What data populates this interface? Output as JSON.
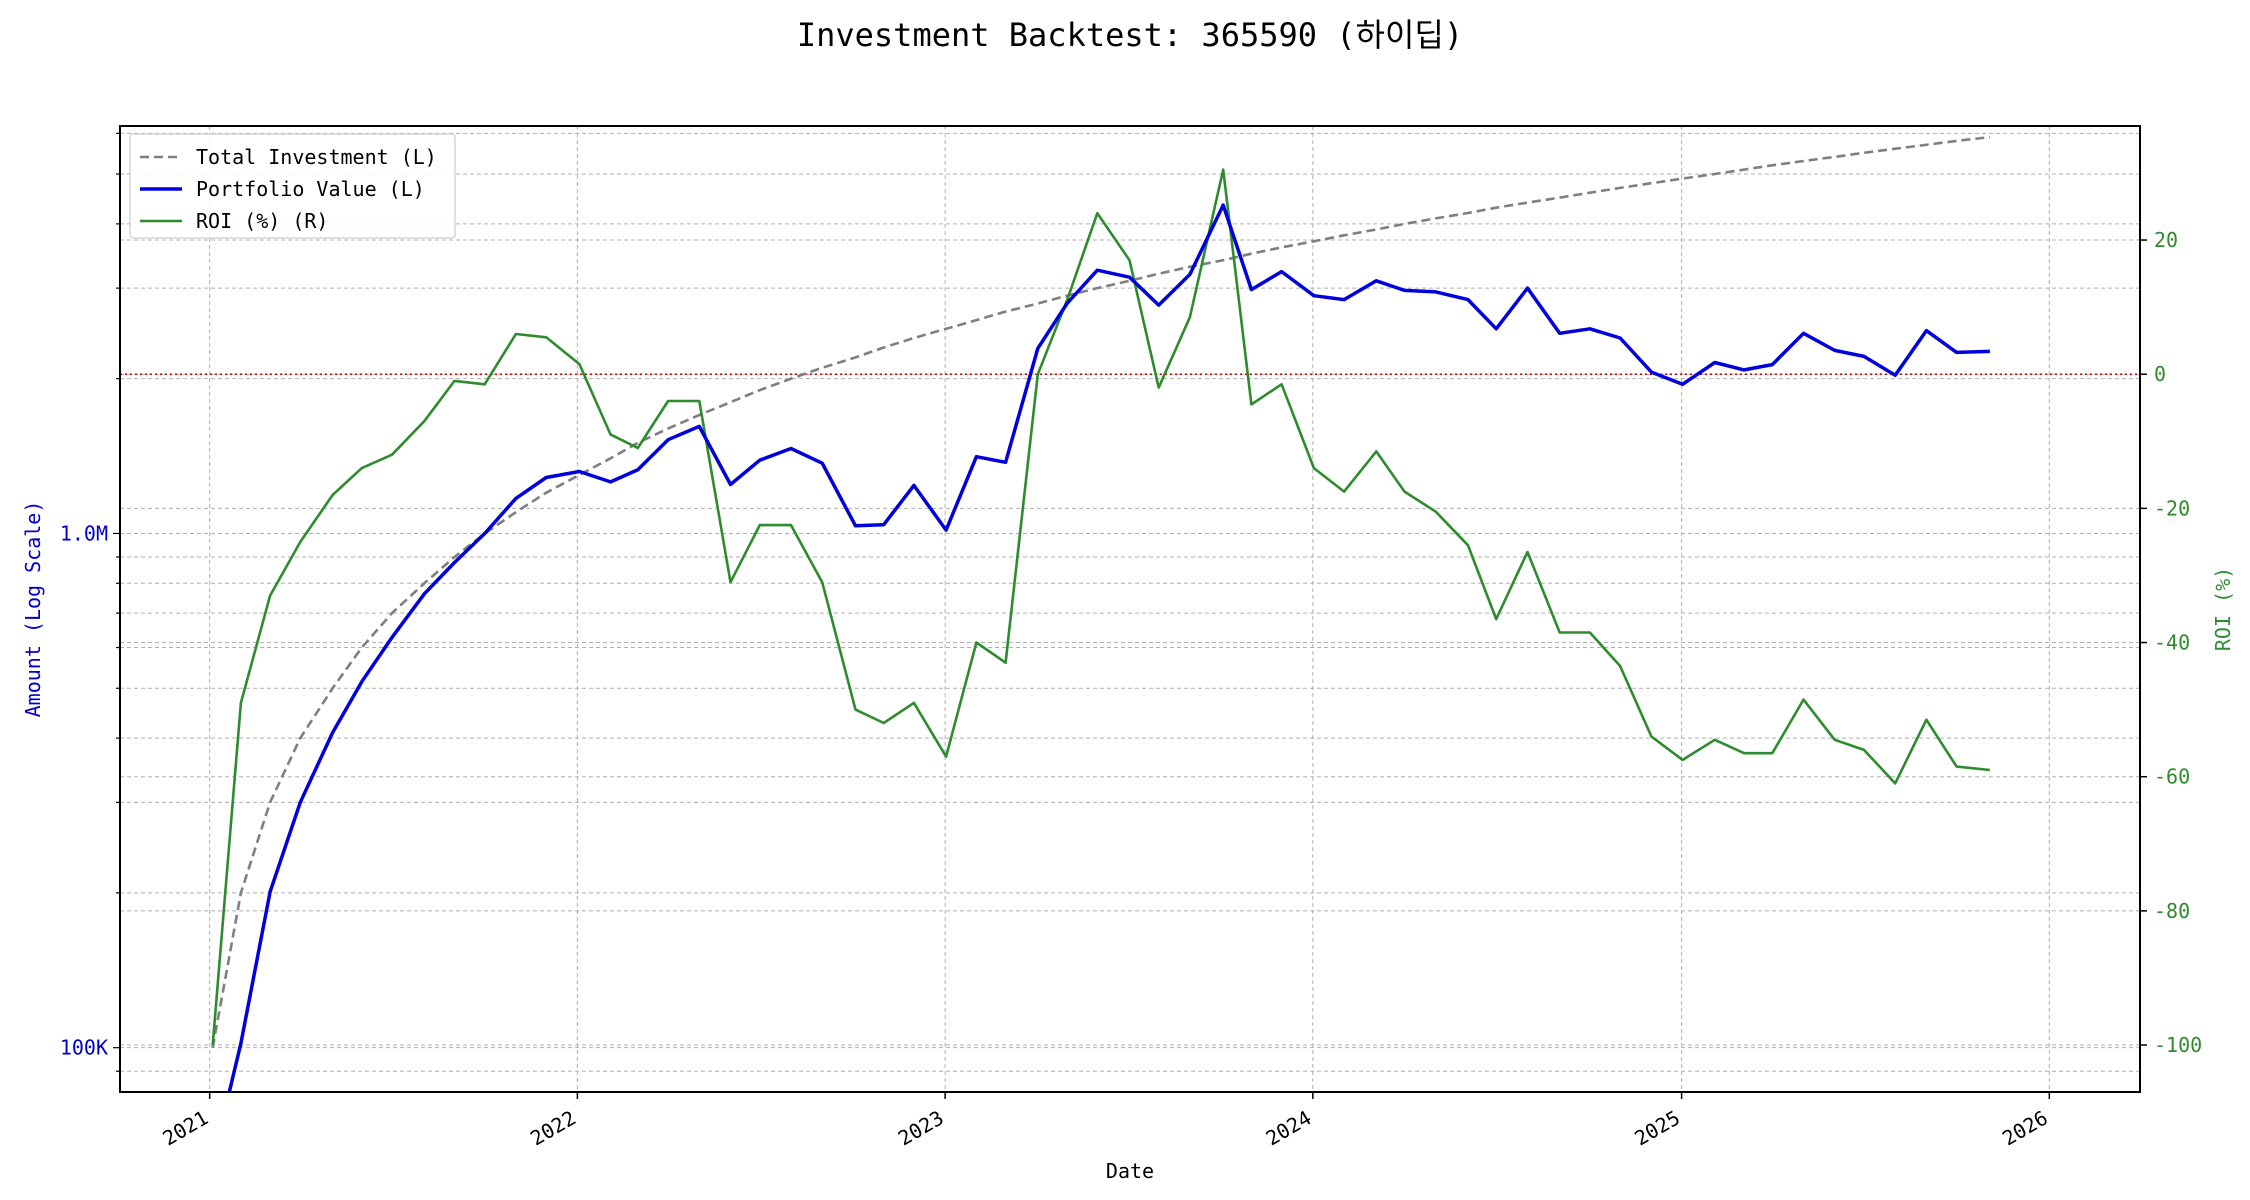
{
  "chart_data": {
    "type": "line",
    "title": "Investment Backtest: 365590 (하이딥)",
    "xlabel": "Date",
    "ylabel_left": "Amount (Log Scale)",
    "ylabel_right": "ROI (%)",
    "x_ticks": [
      "2021",
      "2022",
      "2023",
      "2024",
      "2025",
      "2026"
    ],
    "y_left_scale": "log",
    "y_left_ticks": [
      {
        "value": 100000,
        "label": "100K"
      },
      {
        "value": 1000000,
        "label": "1.0M"
      }
    ],
    "y_left_range": [
      82000,
      6200000
    ],
    "y_right_ticks": [
      -100,
      -80,
      -60,
      -40,
      -20,
      0,
      20
    ],
    "y_right_range": [
      -107,
      37
    ],
    "x_range": [
      "2020-10-04",
      "2026-04-01"
    ],
    "grid": true,
    "legend_position": "top-left",
    "zero_line_color": "#cc0000",
    "x": [
      "2021-01-04",
      "2021-02-01",
      "2021-03-02",
      "2021-04-01",
      "2021-05-03",
      "2021-06-01",
      "2021-07-01",
      "2021-08-02",
      "2021-09-01",
      "2021-10-01",
      "2021-11-01",
      "2021-12-01",
      "2022-01-03",
      "2022-02-03",
      "2022-03-02",
      "2022-04-01",
      "2022-05-02",
      "2022-06-02",
      "2022-07-01",
      "2022-08-01",
      "2022-09-01",
      "2022-10-04",
      "2022-11-01",
      "2022-12-01",
      "2023-01-02",
      "2023-02-01",
      "2023-03-02",
      "2023-04-03",
      "2023-05-02",
      "2023-06-01",
      "2023-07-03",
      "2023-08-01",
      "2023-09-01",
      "2023-10-04",
      "2023-11-01",
      "2023-12-01",
      "2024-01-02",
      "2024-02-01",
      "2024-03-04",
      "2024-04-01",
      "2024-05-02",
      "2024-06-03",
      "2024-07-01",
      "2024-08-01",
      "2024-09-02",
      "2024-10-02",
      "2024-11-01",
      "2024-12-02",
      "2025-01-02",
      "2025-02-03",
      "2025-03-04",
      "2025-04-01",
      "2025-05-02",
      "2025-06-02",
      "2025-07-01",
      "2025-08-01",
      "2025-09-01",
      "2025-10-01",
      "2025-11-03"
    ],
    "series": [
      {
        "name": "Total Investment (L)",
        "axis": "left",
        "color": "#7f7f7f",
        "style": "dashed",
        "values": [
          100000,
          200000,
          300000,
          400000,
          500000,
          600000,
          700000,
          800000,
          900000,
          1000000,
          1100000,
          1200000,
          1300000,
          1400000,
          1500000,
          1600000,
          1700000,
          1800000,
          1900000,
          2000000,
          2100000,
          2200000,
          2300000,
          2400000,
          2500000,
          2600000,
          2700000,
          2800000,
          2900000,
          3000000,
          3100000,
          3200000,
          3300000,
          3400000,
          3500000,
          3600000,
          3700000,
          3800000,
          3900000,
          4000000,
          4100000,
          4200000,
          4300000,
          4400000,
          4500000,
          4600000,
          4700000,
          4800000,
          4900000,
          5000000,
          5100000,
          5200000,
          5300000,
          5400000,
          5500000,
          5600000,
          5700000,
          5800000,
          5900000
        ]
      },
      {
        "name": "Portfolio Value (L)",
        "axis": "left",
        "color": "#0000dd",
        "style": "solid",
        "values": [
          60000,
          102000,
          201000,
          300000,
          410000,
          515000,
          628000,
          763000,
          878000,
          1000000,
          1170000,
          1285000,
          1320000,
          1260000,
          1330000,
          1522000,
          1615000,
          1245000,
          1388000,
          1463000,
          1370000,
          1035000,
          1040000,
          1240000,
          1015000,
          1410000,
          1375000,
          2290000,
          2800000,
          3250000,
          3150000,
          2780000,
          3190000,
          4350000,
          2980000,
          3230000,
          2900000,
          2850000,
          3100000,
          2970000,
          2950000,
          2850000,
          2500000,
          3000000,
          2450000,
          2500000,
          2400000,
          2060000,
          1950000,
          2150000,
          2080000,
          2130000,
          2450000,
          2270000,
          2210000,
          2030000,
          2480000,
          2250000,
          2260000
        ]
      },
      {
        "name": "ROI (%) (R)",
        "axis": "right",
        "color": "#2e8b2e",
        "style": "solid",
        "values": [
          -100,
          -49,
          -33,
          -25,
          -18,
          -14,
          -12,
          -7,
          -1,
          -1.5,
          6,
          5.5,
          1.5,
          -9,
          -11,
          -4,
          -4,
          -31,
          -22.5,
          -22.5,
          -31,
          -50,
          -52,
          -49,
          -57,
          -40,
          -43,
          0,
          11,
          24,
          17,
          -2,
          8.5,
          30.5,
          -4.5,
          -1.5,
          -14,
          -17.5,
          -11.5,
          -17.5,
          -20.5,
          -25.5,
          -36.5,
          -26.5,
          -38.5,
          -38.5,
          -43.5,
          -54,
          -57.5,
          -54.5,
          -56.5,
          -56.5,
          -48.5,
          -54.5,
          -56,
          -61,
          -51.5,
          -58.5,
          -59
        ]
      }
    ]
  }
}
